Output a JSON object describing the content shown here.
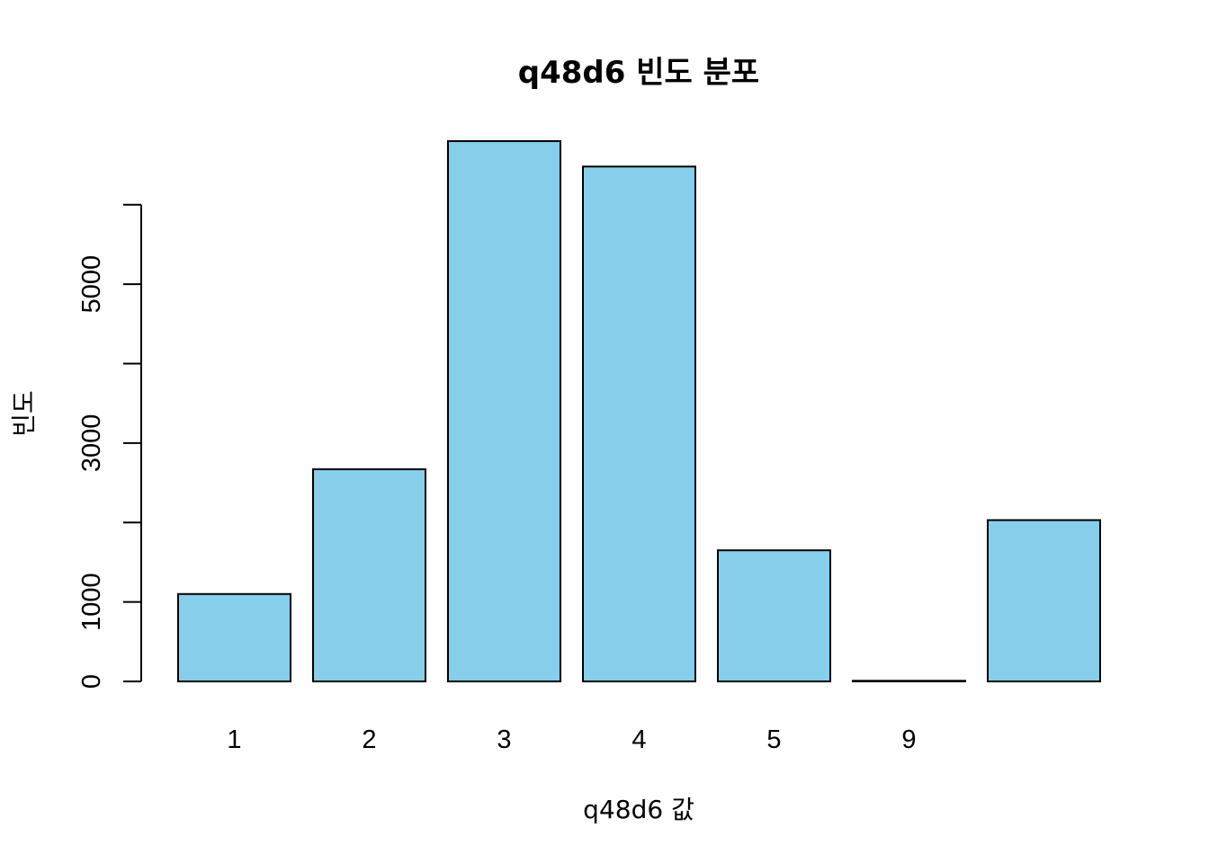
{
  "chart_data": {
    "type": "bar",
    "title": "q48d6 빈도 분포",
    "xlabel": "q48d6 값",
    "ylabel": "빈도",
    "categories": [
      "1",
      "2",
      "3",
      "4",
      "5",
      "9",
      ""
    ],
    "values": [
      1100,
      2670,
      6800,
      6480,
      1650,
      8,
      2030
    ],
    "ylim": [
      0,
      6800
    ],
    "yticks": [
      0,
      1000,
      2000,
      3000,
      4000,
      5000,
      6000
    ],
    "ytick_labels": [
      "0",
      "1000",
      "",
      "3000",
      "",
      "5000",
      ""
    ],
    "bar_color": "#87CEEB",
    "grid": false,
    "legend": "none"
  }
}
